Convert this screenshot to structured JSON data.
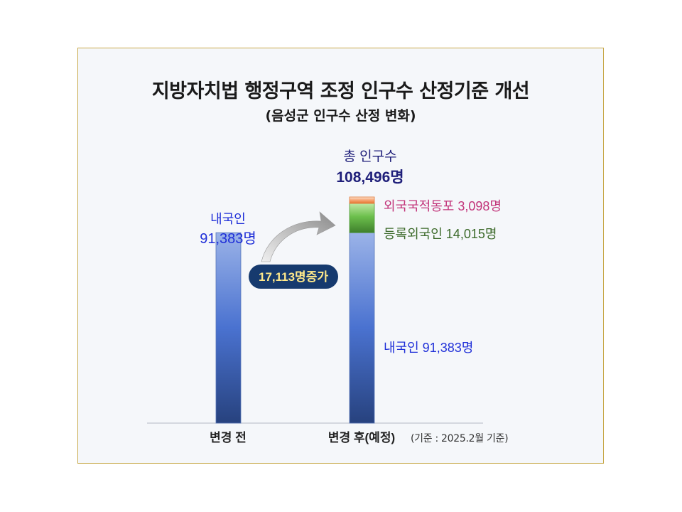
{
  "title": "지방자치법 행정구역 조정 인구수 산정기준 개선",
  "subtitle": "(음성군 인구수 산정 변화)",
  "source_note": "(기준 : 2025.2월   기준)",
  "colors": {
    "domestic": "#3f6fd0",
    "registered_foreigner": "#5aa845",
    "overseas_korean": "#f08a4a",
    "increase_badge": "#163a6e",
    "increase_text": "#ffe98a",
    "label_blue": "#1f2fd8",
    "label_pink": "#c2347a",
    "label_green": "#3c6a2a"
  },
  "chart_data": {
    "type": "bar",
    "stacked": true,
    "categories": [
      "변경 전",
      "변경 후(예정)"
    ],
    "series": [
      {
        "name": "내국인",
        "values": [
          91383,
          91383
        ]
      },
      {
        "name": "등록외국인",
        "values": [
          0,
          14015
        ]
      },
      {
        "name": "외국국적동포",
        "values": [
          0,
          3098
        ]
      }
    ],
    "ylim": [
      0,
      120000
    ],
    "grid": false,
    "legend": "none",
    "annotations": {
      "before_label_line1": "내국인",
      "before_label_line2": "91,383명",
      "total_label_line1": "총 인구수",
      "total_label_line2": "108,496명",
      "overseas_label": "외국국적동포 3,098명",
      "registered_label": "등록외국인 14,015명",
      "domestic_label": "내국인 91,383명",
      "increase_label": "17,113명증가"
    }
  }
}
